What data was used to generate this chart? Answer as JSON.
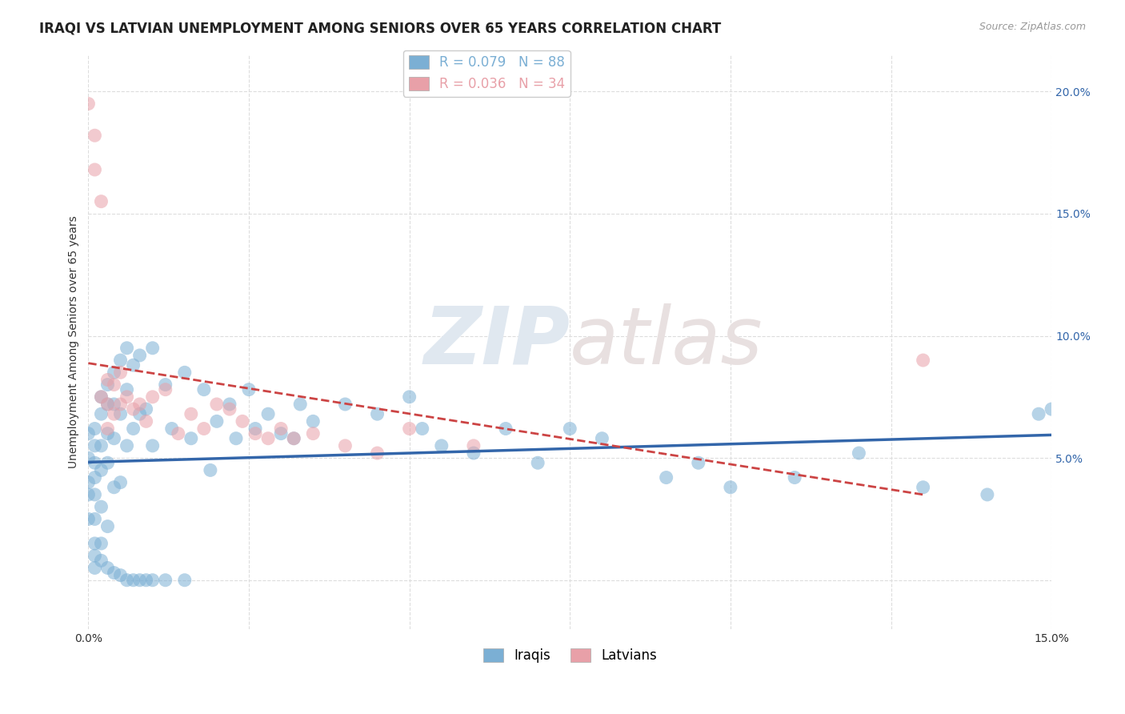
{
  "title": "IRAQI VS LATVIAN UNEMPLOYMENT AMONG SENIORS OVER 65 YEARS CORRELATION CHART",
  "source": "Source: ZipAtlas.com",
  "ylabel": "Unemployment Among Seniors over 65 years",
  "xlim": [
    0.0,
    0.15
  ],
  "ylim": [
    -0.02,
    0.215
  ],
  "yticks": [
    0.0,
    0.05,
    0.1,
    0.15,
    0.2
  ],
  "ytick_labels": [
    "",
    "5.0%",
    "10.0%",
    "15.0%",
    "20.0%"
  ],
  "xtick_vals": [
    0.0,
    0.025,
    0.05,
    0.075,
    0.1,
    0.125,
    0.15
  ],
  "xtick_labels": [
    "0.0%",
    "",
    "",
    "",
    "",
    "",
    "15.0%"
  ],
  "iraqis_color": "#7bafd4",
  "latvians_color": "#e8a0a8",
  "iraqis_line_color": "#3366aa",
  "latvians_line_color": "#cc4444",
  "grid_color": "#dddddd",
  "legend1_labels": [
    "R = 0.079   N = 88",
    "R = 0.036   N = 34"
  ],
  "legend2_labels": [
    "Iraqis",
    "Latvians"
  ],
  "iraqis_x": [
    0.0,
    0.0,
    0.0,
    0.0,
    0.0,
    0.001,
    0.001,
    0.001,
    0.001,
    0.001,
    0.001,
    0.001,
    0.001,
    0.002,
    0.002,
    0.002,
    0.002,
    0.002,
    0.002,
    0.003,
    0.003,
    0.003,
    0.003,
    0.003,
    0.004,
    0.004,
    0.004,
    0.004,
    0.005,
    0.005,
    0.005,
    0.006,
    0.006,
    0.006,
    0.007,
    0.007,
    0.008,
    0.008,
    0.009,
    0.01,
    0.01,
    0.012,
    0.013,
    0.015,
    0.016,
    0.018,
    0.019,
    0.02,
    0.022,
    0.023,
    0.025,
    0.026,
    0.028,
    0.03,
    0.032,
    0.033,
    0.035,
    0.04,
    0.045,
    0.05,
    0.052,
    0.055,
    0.06,
    0.065,
    0.07,
    0.075,
    0.08,
    0.09,
    0.095,
    0.1,
    0.11,
    0.12,
    0.13,
    0.14,
    0.148,
    0.15,
    0.001,
    0.002,
    0.003,
    0.004,
    0.005,
    0.006,
    0.007,
    0.008,
    0.009,
    0.01,
    0.012,
    0.015
  ],
  "iraqis_y": [
    0.05,
    0.06,
    0.04,
    0.035,
    0.025,
    0.062,
    0.055,
    0.048,
    0.042,
    0.035,
    0.025,
    0.015,
    0.005,
    0.075,
    0.068,
    0.055,
    0.045,
    0.03,
    0.015,
    0.08,
    0.072,
    0.06,
    0.048,
    0.022,
    0.085,
    0.072,
    0.058,
    0.038,
    0.09,
    0.068,
    0.04,
    0.095,
    0.078,
    0.055,
    0.088,
    0.062,
    0.092,
    0.068,
    0.07,
    0.095,
    0.055,
    0.08,
    0.062,
    0.085,
    0.058,
    0.078,
    0.045,
    0.065,
    0.072,
    0.058,
    0.078,
    0.062,
    0.068,
    0.06,
    0.058,
    0.072,
    0.065,
    0.072,
    0.068,
    0.075,
    0.062,
    0.055,
    0.052,
    0.062,
    0.048,
    0.062,
    0.058,
    0.042,
    0.048,
    0.038,
    0.042,
    0.052,
    0.038,
    0.035,
    0.068,
    0.07,
    0.01,
    0.008,
    0.005,
    0.003,
    0.002,
    0.0,
    0.0,
    0.0,
    0.0,
    0.0,
    0.0,
    0.0
  ],
  "latvians_x": [
    0.0,
    0.001,
    0.001,
    0.002,
    0.002,
    0.003,
    0.003,
    0.003,
    0.004,
    0.004,
    0.005,
    0.005,
    0.006,
    0.007,
    0.008,
    0.009,
    0.01,
    0.012,
    0.014,
    0.016,
    0.018,
    0.02,
    0.022,
    0.024,
    0.026,
    0.028,
    0.03,
    0.032,
    0.035,
    0.04,
    0.045,
    0.05,
    0.06,
    0.13
  ],
  "latvians_y": [
    0.195,
    0.182,
    0.168,
    0.155,
    0.075,
    0.082,
    0.072,
    0.062,
    0.08,
    0.068,
    0.085,
    0.072,
    0.075,
    0.07,
    0.072,
    0.065,
    0.075,
    0.078,
    0.06,
    0.068,
    0.062,
    0.072,
    0.07,
    0.065,
    0.06,
    0.058,
    0.062,
    0.058,
    0.06,
    0.055,
    0.052,
    0.062,
    0.055,
    0.09
  ]
}
